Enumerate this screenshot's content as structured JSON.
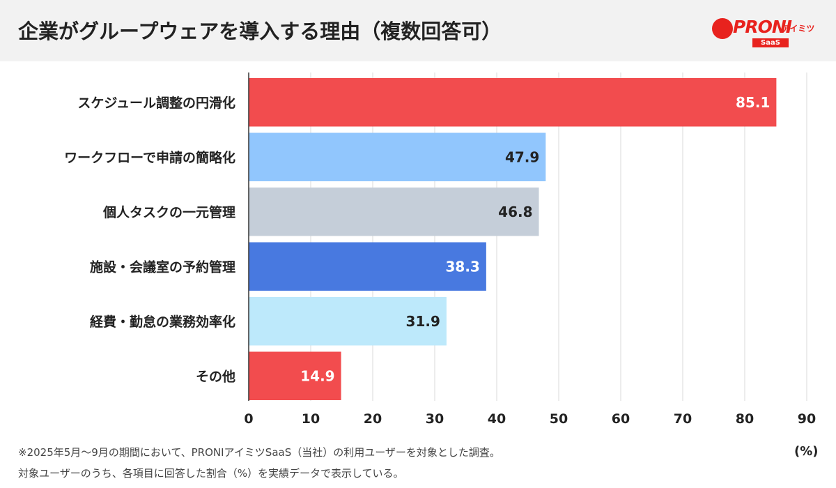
{
  "header": {
    "title": "企業がグループウェアを導入する理由（複数回答可）",
    "logo": {
      "brand": "PRONI",
      "sub": "アイミツ",
      "badge": "SaaS"
    }
  },
  "chart_data": {
    "type": "bar",
    "orientation": "horizontal",
    "categories": [
      "スケジュール調整の円滑化",
      "ワークフローで申請の簡略化",
      "個人タスクの一元管理",
      "施設・会議室の予約管理",
      "経費・勤怠の業務効率化",
      "その他"
    ],
    "values": [
      85.1,
      47.9,
      46.8,
      38.3,
      31.9,
      14.9
    ],
    "colors": [
      "#f24c4e",
      "#91c6fd",
      "#c5ced9",
      "#4879e0",
      "#bde9fb",
      "#f24c4e"
    ],
    "label_colors": [
      "#ffffff",
      "#222222",
      "#222222",
      "#ffffff",
      "#222222",
      "#ffffff"
    ],
    "xlim": [
      0,
      90
    ],
    "ticks": [
      0,
      10,
      20,
      30,
      40,
      50,
      60,
      70,
      80,
      90
    ],
    "unit": "(%)",
    "grid": true
  },
  "footnotes": [
    "※2025年5月〜9月の期間において、PRONIアイミツSaaS（当社）の利用ユーザーを対象とした調査。",
    "対象ユーザーのうち、各項目に回答した割合（%）を実績データで表示している。"
  ]
}
